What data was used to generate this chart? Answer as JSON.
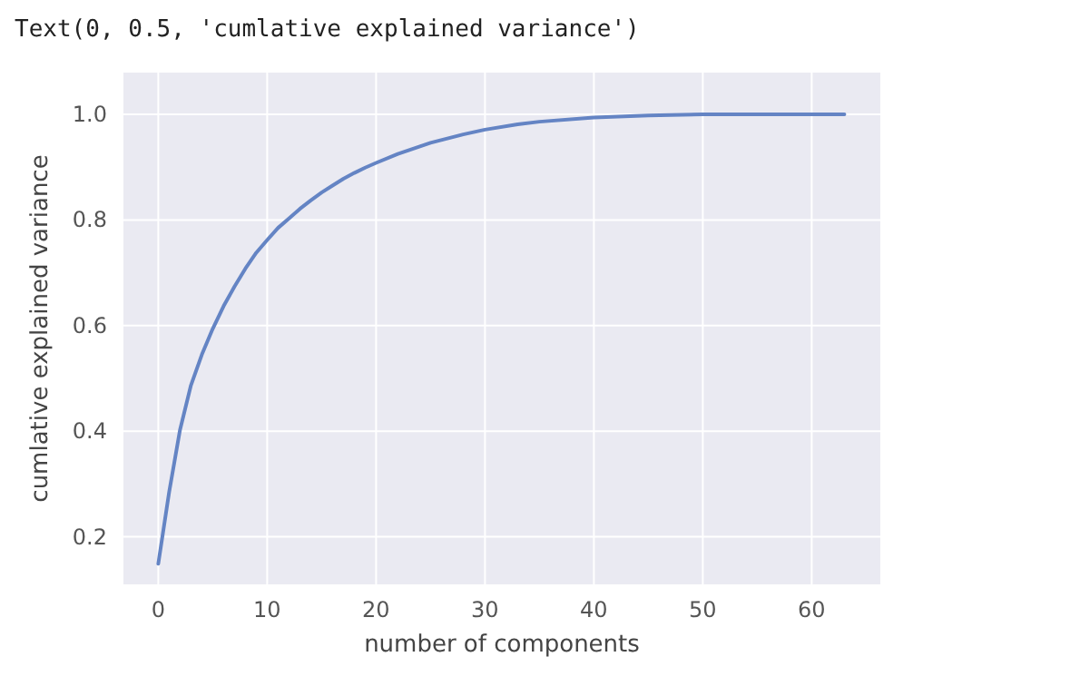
{
  "chart_data": {
    "type": "line",
    "xlabel": "number of components",
    "ylabel": "cumlative explained variance",
    "annotations": [
      "Text(0, 0.5, 'cumlative explained variance')"
    ],
    "x": [
      0,
      1,
      2,
      3,
      4,
      5,
      6,
      7,
      8,
      9,
      10,
      11,
      12,
      13,
      14,
      15,
      16,
      17,
      18,
      19,
      20,
      22,
      25,
      28,
      30,
      33,
      35,
      40,
      45,
      50,
      55,
      63
    ],
    "series": [
      {
        "color": "#6484c4",
        "values": [
          0.149,
          0.285,
          0.403,
          0.487,
          0.545,
          0.594,
          0.637,
          0.674,
          0.708,
          0.738,
          0.762,
          0.785,
          0.803,
          0.821,
          0.837,
          0.852,
          0.865,
          0.878,
          0.889,
          0.899,
          0.908,
          0.925,
          0.946,
          0.962,
          0.971,
          0.981,
          0.986,
          0.994,
          0.998,
          1.0,
          1.0,
          1.0
        ]
      }
    ],
    "xlim": [
      -3.2,
      66.3
    ],
    "ylim": [
      0.11,
      1.079
    ],
    "xticks": [
      0,
      10,
      20,
      30,
      40,
      50,
      60
    ],
    "yticks": [
      {
        "value": 0.2,
        "label": "0.2"
      },
      {
        "value": 0.4,
        "label": "0.4"
      },
      {
        "value": 0.6,
        "label": "0.6"
      },
      {
        "value": 0.8,
        "label": "0.8"
      },
      {
        "value": 1.0,
        "label": "1.0"
      }
    ],
    "grid": true,
    "line_style": "solid"
  }
}
